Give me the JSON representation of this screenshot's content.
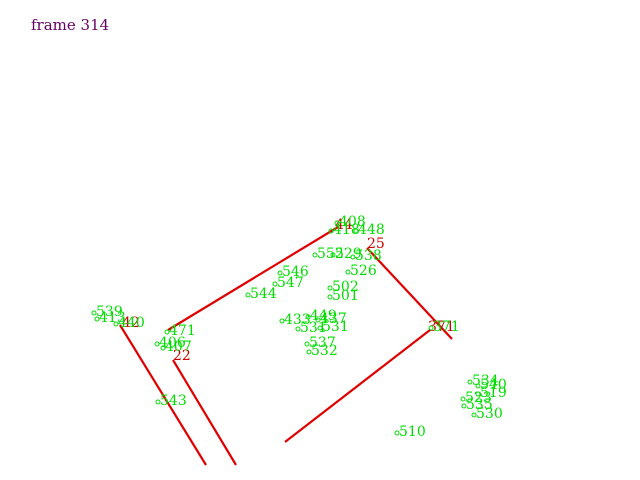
{
  "frame_label": "frame 314",
  "colors": {
    "frame_text": "#660066",
    "segment": "#e00000",
    "segment_label": "#cc0000",
    "point": "#00dd00"
  },
  "segments": [
    {
      "id": "s-44",
      "label": "44"
    },
    {
      "id": "s-25",
      "label": "25"
    },
    {
      "id": "s-42",
      "label": "42"
    },
    {
      "id": "s-22",
      "label": "22"
    },
    {
      "id": "s-371",
      "label": "371"
    }
  ],
  "points": [
    "408",
    "418",
    "448",
    "552",
    "529",
    "538",
    "526",
    "546",
    "547",
    "544",
    "502",
    "501",
    "433",
    "449",
    "437",
    "531",
    "537",
    "532",
    "371",
    "531",
    "471",
    "406",
    "407",
    "539",
    "413",
    "440",
    "543",
    "510",
    "534",
    "540",
    "519",
    "523",
    "535",
    "530"
  ]
}
